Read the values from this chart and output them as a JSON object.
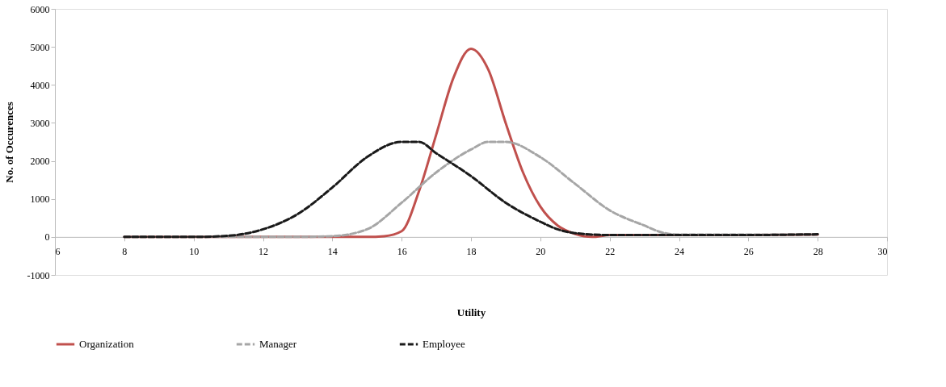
{
  "chart_data": {
    "type": "line",
    "xlabel": "Utility",
    "ylabel": "No. of Occurences",
    "xlim": [
      6,
      30
    ],
    "xticks": [
      6,
      8,
      10,
      12,
      14,
      16,
      18,
      20,
      22,
      24,
      26,
      28,
      30
    ],
    "ylim": [
      -1000,
      6000
    ],
    "yticks": [
      -1000,
      0,
      1000,
      2000,
      3000,
      4000,
      5000,
      6000
    ],
    "grid": false,
    "legend": "bottom",
    "marker": "none",
    "series": [
      {
        "name": "Organization",
        "color": "#c0504d",
        "line_style": "solid",
        "x": [
          8,
          10,
          12,
          14,
          15,
          15.5,
          16,
          16.5,
          17,
          17.5,
          18,
          18.5,
          19,
          19.5,
          20,
          20.5,
          21,
          21.5,
          22,
          24,
          26,
          28
        ],
        "values": [
          0,
          0,
          0,
          0,
          0,
          20,
          150,
          1200,
          2700,
          4200,
          4950,
          4400,
          3000,
          1700,
          800,
          300,
          80,
          0,
          50,
          50,
          50,
          60
        ]
      },
      {
        "name": "Manager",
        "color": "#a6a6a6",
        "line_style": "dashed",
        "x": [
          8,
          10,
          12,
          13,
          14,
          15,
          16,
          17,
          18,
          18.5,
          19,
          20,
          21,
          22,
          23,
          23.5,
          24,
          26,
          28
        ],
        "values": [
          0,
          0,
          0,
          0,
          20,
          200,
          900,
          1700,
          2300,
          2500,
          2500,
          2100,
          1400,
          700,
          300,
          120,
          60,
          60,
          60
        ]
      },
      {
        "name": "Employee",
        "color": "#1a1a1a",
        "line_style": "dashed",
        "x": [
          8,
          10,
          11,
          12,
          13,
          14,
          15,
          16,
          16.5,
          17,
          18,
          19,
          20,
          20.5,
          21,
          22,
          24,
          26,
          28
        ],
        "values": [
          0,
          0,
          30,
          200,
          600,
          1300,
          2100,
          2500,
          2500,
          2200,
          1600,
          900,
          400,
          200,
          100,
          50,
          50,
          50,
          70
        ]
      }
    ]
  }
}
